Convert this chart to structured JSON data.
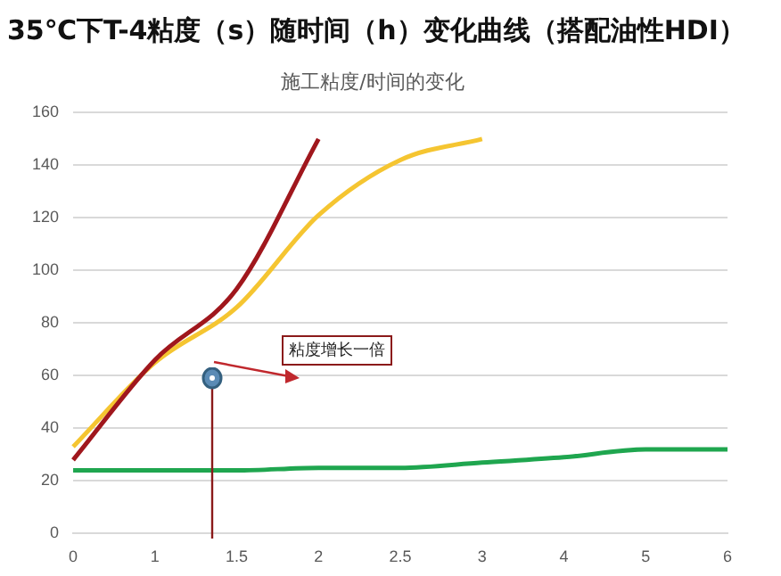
{
  "chart_data": {
    "type": "line",
    "title": "35℃下T-4粘度（s）随时间（h）变化曲线（搭配油性HDI）",
    "subtitle": "施工粘度/时间的变化",
    "categories": [
      "0",
      "1",
      "1.5",
      "2",
      "2.5",
      "3",
      "4",
      "5",
      "6"
    ],
    "series": [
      {
        "color": "#a0171d",
        "values": [
          28,
          66,
          93,
          150,
          null,
          null,
          null,
          null,
          null
        ]
      },
      {
        "color": "#f5c531",
        "values": [
          33,
          65,
          86,
          121,
          142,
          150,
          null,
          null,
          null
        ]
      },
      {
        "color": "#1fa64f",
        "values": [
          24,
          24,
          24,
          25,
          25,
          27,
          29,
          32,
          32
        ]
      }
    ],
    "ylim": [
      0,
      160
    ],
    "yticks": [
      0,
      20,
      40,
      60,
      80,
      100,
      120,
      140,
      160
    ],
    "grid": "y",
    "legend": false,
    "annotations": [
      "粘度增长一倍"
    ]
  }
}
